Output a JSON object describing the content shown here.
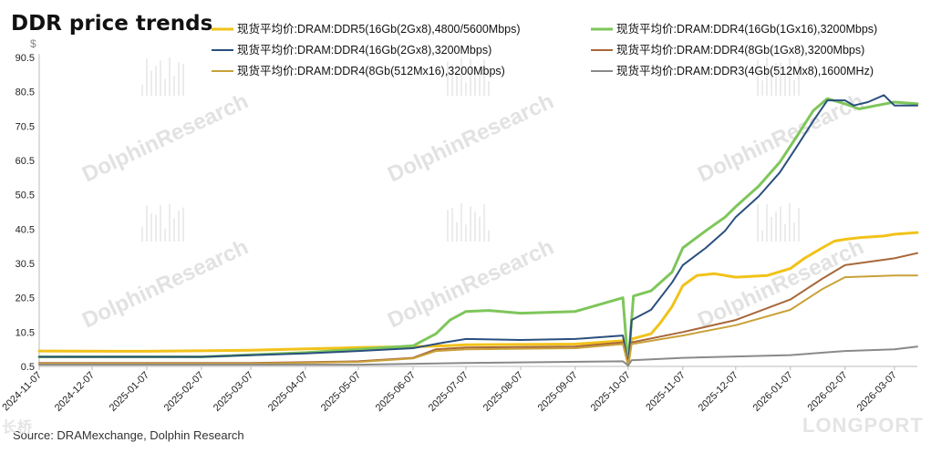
{
  "chart_data": {
    "type": "line",
    "title": "DDR price trends",
    "unit": "$",
    "source": "Source: DRAMexchange,  Dolphin  Research",
    "watermark": "DolphinResearch",
    "brand_logo": "LONGPORT",
    "corner_logo": "长桥",
    "ylim": [
      0.5,
      90.5
    ],
    "yticks": [
      0.5,
      10.5,
      20.5,
      30.5,
      40.5,
      50.5,
      60.5,
      70.5,
      80.5,
      90.5
    ],
    "xlim": [
      "2024-11-07",
      "2026-03-20"
    ],
    "xticks": [
      "2024-11-07",
      "2024-12-07",
      "2025-01-07",
      "2025-02-07",
      "2025-03-07",
      "2025-04-07",
      "2025-05-07",
      "2025-06-07",
      "2025-07-07",
      "2025-08-07",
      "2025-09-07",
      "2025-10-07",
      "2025-11-07",
      "2025-12-07",
      "2026-01-07",
      "2026-02-07",
      "2026-03-07"
    ],
    "legend_position": "top",
    "series": [
      {
        "name": "现货平均价:DRAM:DDR5(16Gb(2Gx8),4800/5600Mbps)",
        "color": "#f2c21a",
        "width": 3,
        "points": [
          [
            "2024-11-07",
            5.0
          ],
          [
            "2025-01-07",
            4.9
          ],
          [
            "2025-03-07",
            5.2
          ],
          [
            "2025-05-07",
            6.0
          ],
          [
            "2025-06-10",
            6.3
          ],
          [
            "2025-06-25",
            6.5
          ],
          [
            "2025-07-07",
            6.8
          ],
          [
            "2025-09-07",
            7.0
          ],
          [
            "2025-10-05",
            8.0
          ],
          [
            "2025-10-07",
            0.8
          ],
          [
            "2025-10-09",
            8.5
          ],
          [
            "2025-10-20",
            10.0
          ],
          [
            "2025-10-25",
            13.0
          ],
          [
            "2025-11-01",
            18.0
          ],
          [
            "2025-11-07",
            24.0
          ],
          [
            "2025-11-15",
            27.0
          ],
          [
            "2025-11-25",
            27.5
          ],
          [
            "2025-12-07",
            26.5
          ],
          [
            "2025-12-25",
            27.0
          ],
          [
            "2026-01-07",
            29.0
          ],
          [
            "2026-01-15",
            32.0
          ],
          [
            "2026-01-25",
            35.0
          ],
          [
            "2026-02-01",
            37.0
          ],
          [
            "2026-02-07",
            37.5
          ],
          [
            "2026-02-15",
            38.0
          ],
          [
            "2026-03-01",
            38.5
          ],
          [
            "2026-03-07",
            39.0
          ],
          [
            "2026-03-20",
            39.5
          ]
        ]
      },
      {
        "name": "现货平均价:DRAM:DDR4(16Gb(1Gx16),3200Mbps)",
        "color": "#7ec65a",
        "width": 3,
        "points": [
          [
            "2024-11-07",
            3.3
          ],
          [
            "2025-02-07",
            3.3
          ],
          [
            "2025-04-07",
            4.5
          ],
          [
            "2025-05-07",
            5.5
          ],
          [
            "2025-06-07",
            6.5
          ],
          [
            "2025-06-20",
            10.0
          ],
          [
            "2025-06-28",
            14.0
          ],
          [
            "2025-07-07",
            16.5
          ],
          [
            "2025-07-20",
            16.8
          ],
          [
            "2025-08-07",
            16.0
          ],
          [
            "2025-09-07",
            16.5
          ],
          [
            "2025-10-04",
            20.5
          ],
          [
            "2025-10-07",
            0.8
          ],
          [
            "2025-10-10",
            21.0
          ],
          [
            "2025-10-20",
            22.5
          ],
          [
            "2025-11-01",
            28.0
          ],
          [
            "2025-11-07",
            35.0
          ],
          [
            "2025-11-20",
            40.0
          ],
          [
            "2025-12-01",
            44.0
          ],
          [
            "2025-12-07",
            47.0
          ],
          [
            "2025-12-20",
            53.0
          ],
          [
            "2026-01-01",
            60.0
          ],
          [
            "2026-01-10",
            67.0
          ],
          [
            "2026-01-20",
            75.0
          ],
          [
            "2026-01-28",
            78.5
          ],
          [
            "2026-02-07",
            77.0
          ],
          [
            "2026-02-15",
            75.5
          ],
          [
            "2026-02-25",
            76.5
          ],
          [
            "2026-03-07",
            77.5
          ],
          [
            "2026-03-20",
            77.0
          ]
        ]
      },
      {
        "name": "现货平均价:DRAM:DDR4(16Gb(2Gx8),3200Mbps)",
        "color": "#2a4f7e",
        "width": 2,
        "points": [
          [
            "2024-11-07",
            3.3
          ],
          [
            "2025-02-07",
            3.3
          ],
          [
            "2025-04-07",
            4.3
          ],
          [
            "2025-05-07",
            5.0
          ],
          [
            "2025-06-07",
            5.8
          ],
          [
            "2025-06-25",
            7.5
          ],
          [
            "2025-07-07",
            8.5
          ],
          [
            "2025-08-07",
            8.2
          ],
          [
            "2025-09-07",
            8.5
          ],
          [
            "2025-10-04",
            9.5
          ],
          [
            "2025-10-07",
            0.8
          ],
          [
            "2025-10-09",
            14.0
          ],
          [
            "2025-10-20",
            17.0
          ],
          [
            "2025-11-01",
            25.0
          ],
          [
            "2025-11-07",
            30.0
          ],
          [
            "2025-11-20",
            35.0
          ],
          [
            "2025-12-01",
            40.0
          ],
          [
            "2025-12-07",
            44.0
          ],
          [
            "2025-12-20",
            50.0
          ],
          [
            "2026-01-01",
            57.0
          ],
          [
            "2026-01-10",
            64.0
          ],
          [
            "2026-01-20",
            72.0
          ],
          [
            "2026-01-28",
            78.0
          ],
          [
            "2026-02-07",
            78.0
          ],
          [
            "2026-02-12",
            76.5
          ],
          [
            "2026-02-20",
            77.5
          ],
          [
            "2026-03-01",
            79.5
          ],
          [
            "2026-03-07",
            76.5
          ],
          [
            "2026-03-20",
            76.5
          ]
        ]
      },
      {
        "name": "现货平均价:DRAM:DDR4(8Gb(1Gx8),3200Mbps)",
        "color": "#a8683a",
        "width": 2,
        "points": [
          [
            "2024-11-07",
            1.5
          ],
          [
            "2025-03-07",
            1.5
          ],
          [
            "2025-05-07",
            2.0
          ],
          [
            "2025-06-07",
            3.0
          ],
          [
            "2025-06-20",
            5.5
          ],
          [
            "2025-07-07",
            6.0
          ],
          [
            "2025-09-07",
            6.3
          ],
          [
            "2025-10-04",
            7.5
          ],
          [
            "2025-10-07",
            0.8
          ],
          [
            "2025-10-09",
            7.5
          ],
          [
            "2025-11-07",
            10.5
          ],
          [
            "2025-12-07",
            14.0
          ],
          [
            "2026-01-07",
            20.0
          ],
          [
            "2026-01-25",
            26.0
          ],
          [
            "2026-02-07",
            30.0
          ],
          [
            "2026-03-07",
            32.0
          ],
          [
            "2026-03-20",
            33.5
          ]
        ]
      },
      {
        "name": "现货平均价:DRAM:DDR4(8Gb(512Mx16),3200Mbps)",
        "color": "#c9a13a",
        "width": 2,
        "points": [
          [
            "2024-11-07",
            1.3
          ],
          [
            "2025-03-07",
            1.3
          ],
          [
            "2025-05-07",
            1.8
          ],
          [
            "2025-06-07",
            2.8
          ],
          [
            "2025-06-20",
            5.0
          ],
          [
            "2025-07-07",
            5.5
          ],
          [
            "2025-09-07",
            5.8
          ],
          [
            "2025-10-04",
            7.0
          ],
          [
            "2025-10-07",
            0.8
          ],
          [
            "2025-10-09",
            7.0
          ],
          [
            "2025-11-07",
            9.5
          ],
          [
            "2025-12-07",
            12.5
          ],
          [
            "2026-01-07",
            17.0
          ],
          [
            "2026-01-25",
            23.0
          ],
          [
            "2026-02-07",
            26.5
          ],
          [
            "2026-03-07",
            27.0
          ],
          [
            "2026-03-20",
            27.0
          ]
        ]
      },
      {
        "name": "现货平均价:DRAM:DDR3(4Gb(512Mx8),1600MHz)",
        "color": "#8a8a8a",
        "width": 2,
        "points": [
          [
            "2024-11-07",
            1.0
          ],
          [
            "2025-05-07",
            1.0
          ],
          [
            "2025-07-07",
            1.5
          ],
          [
            "2025-10-04",
            2.0
          ],
          [
            "2025-10-07",
            0.8
          ],
          [
            "2025-10-09",
            2.3
          ],
          [
            "2025-11-07",
            3.0
          ],
          [
            "2026-01-07",
            3.8
          ],
          [
            "2026-02-07",
            5.0
          ],
          [
            "2026-03-07",
            5.5
          ],
          [
            "2026-03-20",
            6.3
          ]
        ]
      }
    ]
  }
}
